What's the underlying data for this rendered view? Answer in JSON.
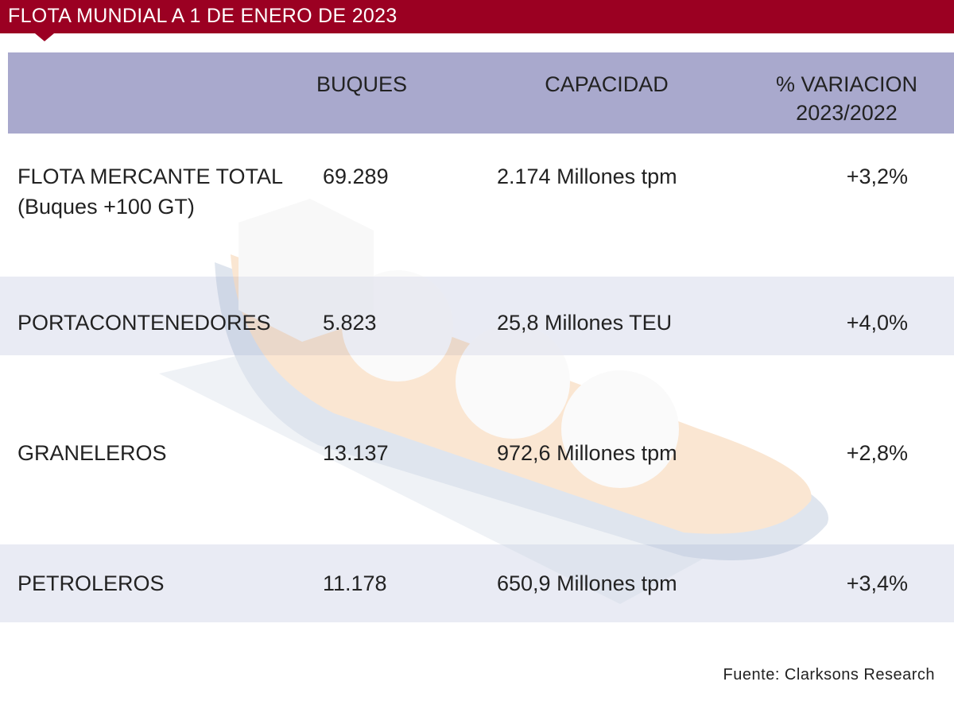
{
  "header": {
    "title": "FLOTA MUNDIAL A 1 DE ENERO DE 2023"
  },
  "table": {
    "columns": [
      "",
      "BUQUES",
      "CAPACIDAD",
      [
        "% VARIACION",
        "2023/2022"
      ]
    ],
    "rows": [
      [
        [
          "FLOTA MERCANTE TOTAL",
          "(Buques +100 GT)"
        ],
        "69.289",
        "2.174 Millones tpm",
        "+3,2%"
      ],
      [
        [
          "PORTACONTENEDORES"
        ],
        "5.823",
        "25,8 Millones TEU",
        "+4,0%"
      ],
      [
        [
          "GRANELEROS"
        ],
        "13.137",
        "972,6 Millones tpm",
        "+2,8%"
      ],
      [
        [
          "PETROLEROS"
        ],
        "11.178",
        "650,9 Millones tpm",
        "+3,4%"
      ]
    ]
  },
  "source": "Fuente: Clarksons Research"
}
